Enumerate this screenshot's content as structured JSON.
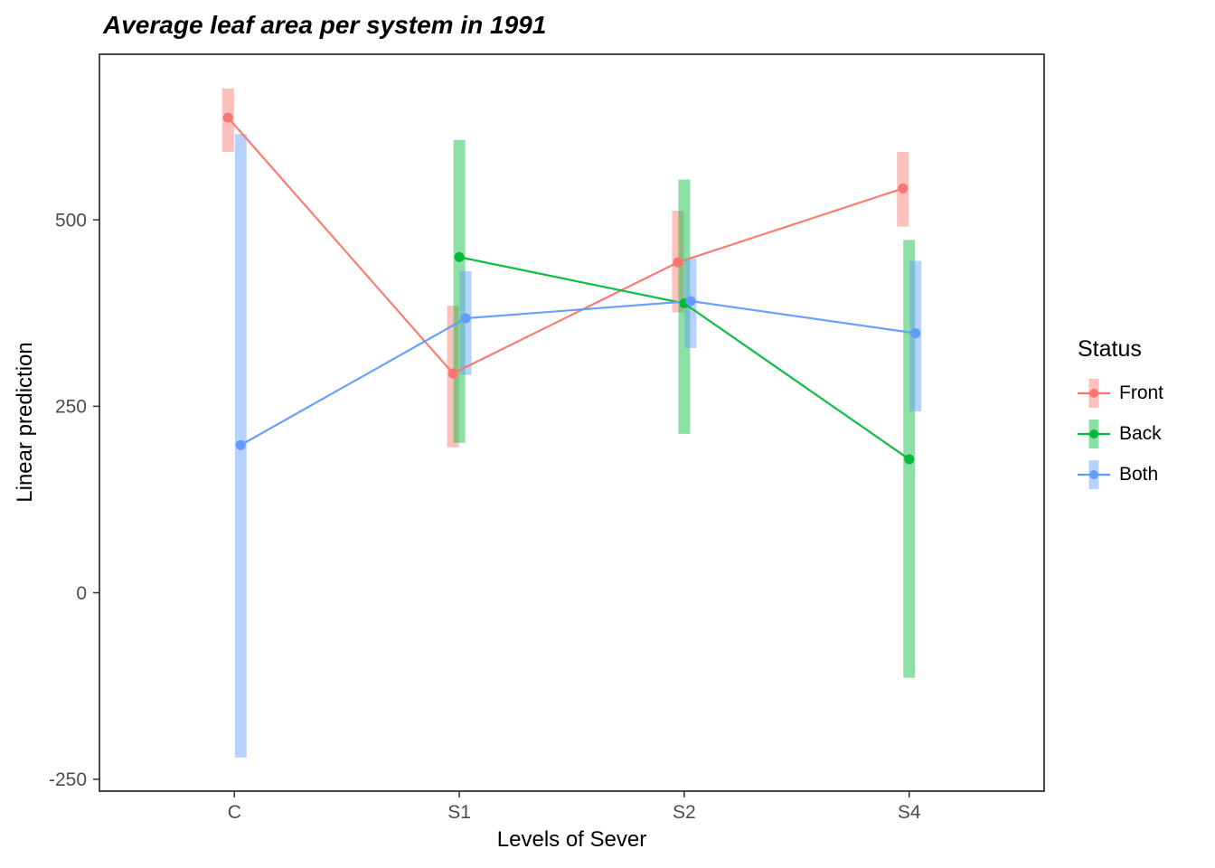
{
  "title": "Average leaf area per system in 1991",
  "x_axis": {
    "label": "Levels of Sever",
    "ticks": [
      "C",
      "S1",
      "S2",
      "S4"
    ]
  },
  "y_axis": {
    "label": "Linear prediction",
    "ticks": [
      -250,
      0,
      250,
      500
    ]
  },
  "legend": {
    "title": "Status",
    "position": "right"
  },
  "chart_data": {
    "type": "line",
    "categories": [
      "C",
      "S1",
      "S2",
      "S4"
    ],
    "ylim": [
      -266,
      722
    ],
    "grid": false,
    "error_bar_opacity": 0.45,
    "series": [
      {
        "name": "Front",
        "color": "#F8766D",
        "points": [
          {
            "x": "C",
            "y": 637,
            "lo": 591,
            "hi": 676
          },
          {
            "x": "S1",
            "y": 294,
            "lo": 195,
            "hi": 385
          },
          {
            "x": "S2",
            "y": 443,
            "lo": 376,
            "hi": 512
          },
          {
            "x": "S4",
            "y": 542,
            "lo": 491,
            "hi": 591
          }
        ]
      },
      {
        "name": "Back",
        "color": "#00BA38",
        "points": [
          {
            "x": "S1",
            "y": 450,
            "lo": 201,
            "hi": 607
          },
          {
            "x": "S2",
            "y": 388,
            "lo": 213,
            "hi": 554
          },
          {
            "x": "S4",
            "y": 179,
            "lo": -114,
            "hi": 473
          }
        ]
      },
      {
        "name": "Both",
        "color": "#619CFF",
        "points": [
          {
            "x": "C",
            "y": 198,
            "lo": -221,
            "hi": 615
          },
          {
            "x": "S1",
            "y": 368,
            "lo": 292,
            "hi": 431
          },
          {
            "x": "S2",
            "y": 391,
            "lo": 328,
            "hi": 448
          },
          {
            "x": "S4",
            "y": 348,
            "lo": 243,
            "hi": 445
          }
        ]
      }
    ]
  }
}
